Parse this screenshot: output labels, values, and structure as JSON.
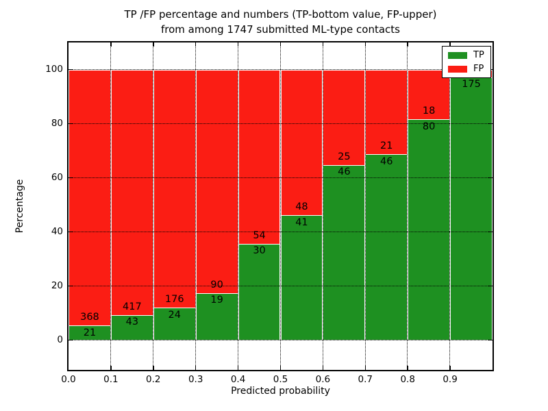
{
  "figure": {
    "title_line1": "TP /FP percentage and numbers (TP-bottom value, FP-upper)",
    "title_line2": "from among 1747 submitted ML-type contacts"
  },
  "chart_data": {
    "type": "bar",
    "stacked": true,
    "title": "TP /FP percentage and numbers (TP-bottom value, FP-upper)\nfrom among 1747 submitted ML-type contacts",
    "xlabel": "Predicted probability",
    "ylabel": "Percentage",
    "xlim": [
      0.0,
      1.0
    ],
    "ylim": [
      -11,
      110
    ],
    "x_tick_labels": [
      "0.0",
      "0.1",
      "0.2",
      "0.3",
      "0.4",
      "0.5",
      "0.6",
      "0.7",
      "0.8",
      "0.9"
    ],
    "x_tick_values": [
      0.0,
      0.1,
      0.2,
      0.3,
      0.4,
      0.5,
      0.6,
      0.7,
      0.8,
      0.9
    ],
    "y_tick_labels": [
      "0",
      "20",
      "40",
      "60",
      "80",
      "100"
    ],
    "y_tick_values": [
      0,
      20,
      40,
      60,
      80,
      100
    ],
    "grid": "dotted, both axes, drawn over bars",
    "legend": {
      "position": "upper right",
      "entries": [
        {
          "label": "TP",
          "color": "#1e9021"
        },
        {
          "label": "FP",
          "color": "#fb1d14"
        }
      ]
    },
    "colors": {
      "tp": "#1e9021",
      "fp": "#fb1d14",
      "bar_edge": "#ffffff"
    },
    "bars": [
      {
        "x_start": 0.0,
        "x_end": 0.1,
        "tp_count": 21,
        "fp_count": 368,
        "tp_pct": 5.4
      },
      {
        "x_start": 0.1,
        "x_end": 0.2,
        "tp_count": 43,
        "fp_count": 417,
        "tp_pct": 9.3
      },
      {
        "x_start": 0.2,
        "x_end": 0.3,
        "tp_count": 24,
        "fp_count": 176,
        "tp_pct": 12.0
      },
      {
        "x_start": 0.3,
        "x_end": 0.4,
        "tp_count": 19,
        "fp_count": 90,
        "tp_pct": 17.4
      },
      {
        "x_start": 0.4,
        "x_end": 0.5,
        "tp_count": 30,
        "fp_count": 54,
        "tp_pct": 35.7
      },
      {
        "x_start": 0.5,
        "x_end": 0.6,
        "tp_count": 41,
        "fp_count": 48,
        "tp_pct": 46.1
      },
      {
        "x_start": 0.6,
        "x_end": 0.7,
        "tp_count": 46,
        "fp_count": 25,
        "tp_pct": 64.8
      },
      {
        "x_start": 0.7,
        "x_end": 0.8,
        "tp_count": 46,
        "fp_count": 21,
        "tp_pct": 68.7
      },
      {
        "x_start": 0.8,
        "x_end": 0.9,
        "tp_count": 80,
        "fp_count": 18,
        "tp_pct": 81.6
      },
      {
        "x_start": 0.9,
        "x_end": 1.0,
        "tp_count": 175,
        "fp_count": null,
        "tp_pct": 97.2
      }
    ],
    "bar_label_note": "FP count printed just above the TP/FP boundary, TP count just below it; FP count of last bar hidden behind the legend"
  }
}
